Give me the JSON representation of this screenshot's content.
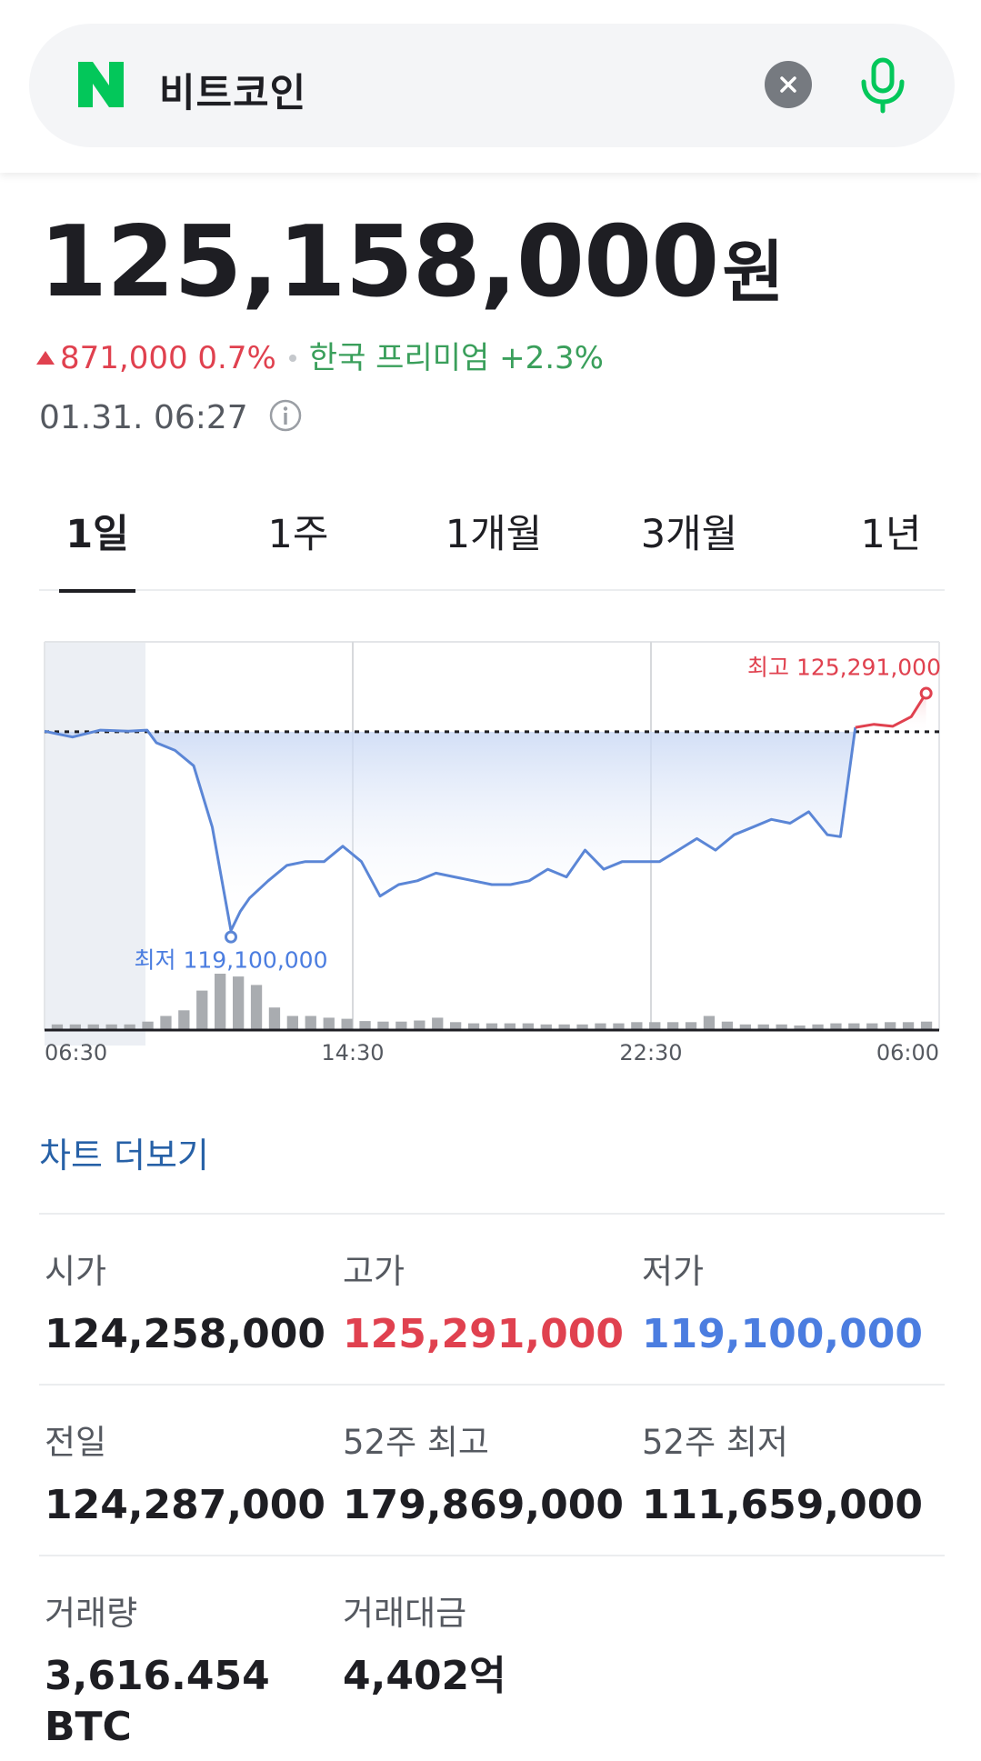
{
  "search": {
    "logo_letter": "N",
    "query": "비트코인",
    "clear_icon": "close-icon",
    "mic_icon": "microphone-icon"
  },
  "quote": {
    "price": "125,158,000",
    "currency": "원",
    "change": "871,000 0.7%",
    "change_direction": "up",
    "premium": "한국 프리미엄 +2.3%",
    "timestamp": "01.31. 06:27"
  },
  "tabs": [
    {
      "label": "1일",
      "active": true
    },
    {
      "label": "1주",
      "active": false
    },
    {
      "label": "1개월",
      "active": false
    },
    {
      "label": "3개월",
      "active": false
    },
    {
      "label": "1년",
      "active": false
    }
  ],
  "chart_data": {
    "type": "line",
    "x_ticks": [
      "06:30",
      "14:30",
      "22:30",
      "06:00"
    ],
    "high_label": "최고 125,291,000",
    "low_label": "최저 119,100,000",
    "high_value": 125291000,
    "low_value": 119100000,
    "previous_close": 124287000,
    "x_range": [
      0,
      48
    ],
    "y_range": [
      118000000,
      126300000
    ],
    "series": [
      {
        "x": [
          0,
          1.5,
          3,
          4.5,
          5.5,
          6,
          7,
          8,
          9,
          10,
          10.5,
          11,
          12,
          13,
          14,
          15,
          16,
          17,
          18,
          19,
          20,
          21,
          22,
          23,
          24,
          25,
          26,
          27,
          28,
          29,
          30,
          31,
          32,
          33,
          34,
          35,
          36,
          37,
          38,
          39,
          40,
          41,
          42,
          42.7,
          43.5,
          44.5,
          45.5,
          46.5,
          47.3
        ],
        "y": [
          124300000,
          124150000,
          124330000,
          124300000,
          124330000,
          124000000,
          123800000,
          123400000,
          121800000,
          119100000,
          119600000,
          119950000,
          120400000,
          120800000,
          120900000,
          120900000,
          121300000,
          120900000,
          120000000,
          120300000,
          120400000,
          120600000,
          120500000,
          120400000,
          120300000,
          120300000,
          120400000,
          120700000,
          120500000,
          121200000,
          120700000,
          120900000,
          120900000,
          120900000,
          121200000,
          121500000,
          121200000,
          121600000,
          121800000,
          122000000,
          121900000,
          122200000,
          121600000,
          121550000,
          124400000,
          124480000,
          124430000,
          124680000,
          125291000
        ]
      }
    ],
    "volume": [
      1,
      1,
      1,
      1,
      1,
      1.5,
      2.5,
      3.5,
      7,
      10,
      9.5,
      8,
      4,
      2.5,
      2.5,
      2.2,
      2,
      1.6,
      1.5,
      1.5,
      1.7,
      2.2,
      1.4,
      1.2,
      1.2,
      1.2,
      1.2,
      1,
      1,
      1,
      1.2,
      1.2,
      1.4,
      1.4,
      1.4,
      1.4,
      2.5,
      1.5,
      1,
      1,
      1,
      0.8,
      1,
      1.2,
      1.2,
      1.2,
      1.4,
      1.4,
      1.5
    ]
  },
  "chart_more": "차트 더보기",
  "stats": [
    {
      "label": "시가",
      "value": "124,258,000",
      "tone": "normal"
    },
    {
      "label": "고가",
      "value": "125,291,000",
      "tone": "up"
    },
    {
      "label": "저가",
      "value": "119,100,000",
      "tone": "down"
    },
    {
      "label": "전일",
      "value": "124,287,000",
      "tone": "normal"
    },
    {
      "label": "52주 최고",
      "value": "179,869,000",
      "tone": "normal"
    },
    {
      "label": "52주 최저",
      "value": "111,659,000",
      "tone": "normal"
    },
    {
      "label": "거래량",
      "value": "3,616.454",
      "value_line2": "BTC",
      "tone": "normal"
    },
    {
      "label": "거래대금",
      "value": "4,402억",
      "tone": "normal"
    }
  ],
  "colors": {
    "accent_green": "#03c75a",
    "up_red": "#e0414f",
    "down_blue": "#4b7de0",
    "link_blue": "#2761a7"
  }
}
